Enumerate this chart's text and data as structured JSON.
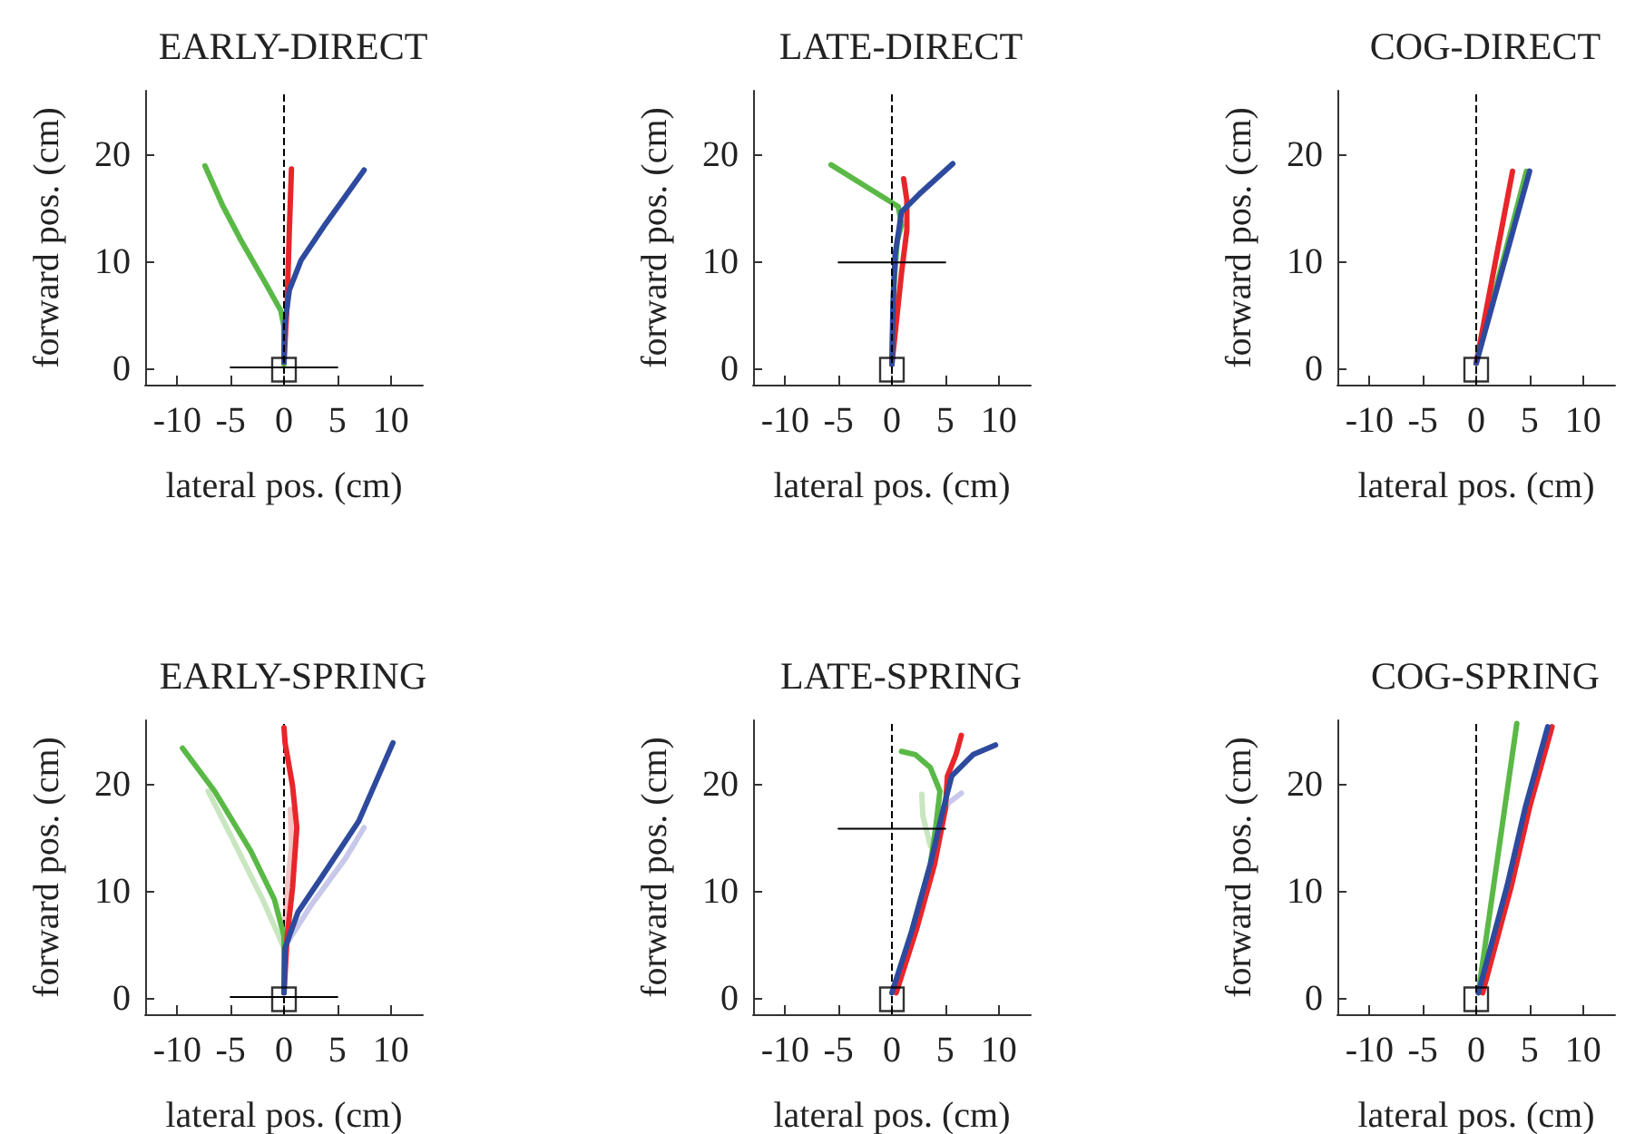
{
  "chart_data": [
    {
      "type": "line",
      "title": "EARLY-DIRECT",
      "xlabel": "lateral pos. (cm)",
      "ylabel": "forward pos. (cm)",
      "xlim": [
        -13,
        13
      ],
      "ylim": [
        -1.4,
        26
      ],
      "xticks": [
        -10,
        -5,
        0,
        5,
        10
      ],
      "yticks": [
        0,
        10,
        20
      ],
      "marker": "none",
      "grid": false,
      "ref_lines": [
        {
          "axis": "x",
          "value": 0,
          "color": "#000000",
          "line_style": "dashed"
        }
      ],
      "series": [
        {
          "color": "#5ab946",
          "x": [
            0,
            0,
            -0.3,
            -1.7,
            -4,
            -5.7,
            -7.4
          ],
          "values": [
            0.5,
            4,
            5.5,
            8,
            12,
            15.2,
            19
          ]
        },
        {
          "color": "#e8262a",
          "x": [
            0,
            0.3,
            0.5,
            0.7
          ],
          "values": [
            0.7,
            6.3,
            13,
            18.7
          ]
        },
        {
          "color": "#2e4a9e",
          "x": [
            0,
            0.05,
            0.5,
            1.6,
            3.9,
            7.5
          ],
          "values": [
            0.7,
            4,
            7.4,
            10.2,
            13.6,
            18.6
          ]
        },
        {
          "color": "#000000",
          "x": [
            -5,
            5
          ],
          "values": [
            0.2,
            0.2
          ]
        },
        {
          "type": "scatter",
          "marker": "square",
          "color": "#000000",
          "x": [
            0
          ],
          "values": [
            0
          ]
        }
      ]
    },
    {
      "type": "line",
      "title": "LATE-DIRECT",
      "xlabel": "lateral pos. (cm)",
      "ylabel": "forward pos. (cm)",
      "xlim": [
        -13,
        13
      ],
      "ylim": [
        -1.4,
        26
      ],
      "xticks": [
        -10,
        -5,
        0,
        5,
        10
      ],
      "yticks": [
        0,
        10,
        20
      ],
      "marker": "none",
      "grid": false,
      "ref_lines": [
        {
          "axis": "x",
          "value": 0,
          "color": "#000000",
          "line_style": "dashed"
        }
      ],
      "series": [
        {
          "color": "#5ab946",
          "x": [
            0,
            0.2,
            0.5,
            0.9,
            0.6,
            -2,
            -5.7
          ],
          "values": [
            0.5,
            8,
            12,
            13.5,
            15.2,
            16.8,
            19.1
          ]
        },
        {
          "color": "#e8262a",
          "x": [
            0,
            0.9,
            1.4,
            1.4,
            1.1
          ],
          "values": [
            0.5,
            9,
            13,
            15.8,
            17.8
          ]
        },
        {
          "color": "#2e4a9e",
          "x": [
            0,
            0.1,
            0.3,
            0.9,
            2.6,
            5.7
          ],
          "values": [
            0.5,
            6.1,
            10.7,
            14.7,
            16.4,
            19.2
          ]
        },
        {
          "color": "#000000",
          "x": [
            -5,
            5
          ],
          "values": [
            10,
            10
          ]
        },
        {
          "type": "scatter",
          "marker": "square",
          "color": "#000000",
          "x": [
            0
          ],
          "values": [
            0
          ]
        }
      ]
    },
    {
      "type": "line",
      "title": "COG-DIRECT",
      "xlabel": "lateral pos. (cm)",
      "ylabel": "forward pos. (cm)",
      "xlim": [
        -13,
        13
      ],
      "ylim": [
        -1.4,
        26
      ],
      "xticks": [
        -10,
        -5,
        0,
        5,
        10
      ],
      "yticks": [
        0,
        10,
        20
      ],
      "marker": "none",
      "grid": false,
      "ref_lines": [
        {
          "axis": "x",
          "value": 0,
          "color": "#000000",
          "line_style": "dashed"
        }
      ],
      "series": [
        {
          "color": "#5ab946",
          "x": [
            0,
            4.7
          ],
          "values": [
            0.6,
            18.5
          ]
        },
        {
          "color": "#e8262a",
          "x": [
            0,
            3.4
          ],
          "values": [
            0.6,
            18.5
          ]
        },
        {
          "color": "#2e4a9e",
          "x": [
            0,
            5
          ],
          "values": [
            0.6,
            18.5
          ]
        },
        {
          "type": "scatter",
          "marker": "square",
          "color": "#000000",
          "x": [
            0
          ],
          "values": [
            0
          ]
        }
      ]
    },
    {
      "type": "line",
      "title": "EARLY-SPRING",
      "xlabel": "lateral pos. (cm)",
      "ylabel": "forward pos. (cm)",
      "xlim": [
        -13,
        13
      ],
      "ylim": [
        -1.4,
        26
      ],
      "xticks": [
        -10,
        -5,
        0,
        5,
        10
      ],
      "yticks": [
        0,
        10,
        20
      ],
      "marker": "none",
      "grid": false,
      "ref_lines": [
        {
          "axis": "x",
          "value": 0,
          "color": "#000000",
          "line_style": "dashed"
        }
      ],
      "series": [
        {
          "color": "#c8e6c0",
          "x": [
            0,
            -2,
            -4.8,
            -7.1
          ],
          "values": [
            4.8,
            9.3,
            14.9,
            19.4
          ]
        },
        {
          "color": "#f4c4c4",
          "x": [
            0,
            0.2,
            0.7,
            0.6
          ],
          "values": [
            4.8,
            9.3,
            14.3,
            17.7
          ]
        },
        {
          "color": "#c8c8ea",
          "x": [
            0,
            2.5,
            5.8,
            7.5
          ],
          "values": [
            4.8,
            8.7,
            13.2,
            16
          ]
        },
        {
          "color": "#5ab946",
          "x": [
            0,
            0,
            -0.9,
            -3.1,
            -6.5,
            -9.5
          ],
          "values": [
            0.8,
            5.9,
            9.3,
            13.8,
            19.4,
            23.4
          ]
        },
        {
          "color": "#e8262a",
          "x": [
            0,
            0.3,
            0.8,
            1.2,
            0.8,
            0.1,
            0
          ],
          "values": [
            0.6,
            5.9,
            10.4,
            16,
            19.9,
            23.9,
            25.3
          ]
        },
        {
          "color": "#2e4a9e",
          "x": [
            0,
            0.1,
            1.3,
            3.6,
            7,
            10.2
          ],
          "values": [
            0.6,
            4.8,
            8.1,
            11.5,
            16.6,
            23.9
          ]
        },
        {
          "color": "#000000",
          "x": [
            -5,
            5
          ],
          "values": [
            0.2,
            0.2
          ]
        },
        {
          "type": "scatter",
          "marker": "square",
          "color": "#000000",
          "x": [
            0
          ],
          "values": [
            0
          ]
        }
      ]
    },
    {
      "type": "line",
      "title": "LATE-SPRING",
      "xlabel": "lateral pos. (cm)",
      "ylabel": "forward pos. (cm)",
      "xlim": [
        -13,
        13
      ],
      "ylim": [
        -1.4,
        26
      ],
      "xticks": [
        -10,
        -5,
        0,
        5,
        10
      ],
      "yticks": [
        0,
        10,
        20
      ],
      "marker": "none",
      "grid": false,
      "ref_lines": [
        {
          "axis": "x",
          "value": 0,
          "color": "#000000",
          "line_style": "dashed"
        }
      ],
      "series": [
        {
          "color": "#c8e6c0",
          "x": [
            3.6,
            2.9,
            2.8
          ],
          "values": [
            14.3,
            17.1,
            19.1
          ]
        },
        {
          "color": "#c8c8ea",
          "x": [
            4.2,
            5.3,
            6.5
          ],
          "values": [
            16,
            18.3,
            19.2
          ]
        },
        {
          "color": "#5ab946",
          "x": [
            1.9,
            3.6,
            4.1,
            4.5,
            3.6,
            2.2,
            0.9
          ],
          "values": [
            6.5,
            12.6,
            16,
            19.4,
            21.6,
            22.8,
            23.1
          ]
        },
        {
          "color": "#e8262a",
          "x": [
            0.4,
            2.3,
            4,
            5,
            5.2,
            6,
            6.5
          ],
          "values": [
            0.6,
            6.5,
            12.6,
            17.7,
            20.8,
            22.8,
            24.6
          ]
        },
        {
          "color": "#2e4a9e",
          "x": [
            0,
            1.9,
            3.6,
            4.8,
            5.6,
            7.6,
            9.7
          ],
          "values": [
            0.6,
            6.5,
            12.6,
            17.7,
            20.8,
            22.8,
            23.7
          ]
        },
        {
          "color": "#000000",
          "x": [
            -5,
            5
          ],
          "values": [
            15.9,
            15.9
          ]
        },
        {
          "type": "scatter",
          "marker": "square",
          "color": "#000000",
          "x": [
            0
          ],
          "values": [
            0
          ]
        }
      ]
    },
    {
      "type": "line",
      "title": "COG-SPRING",
      "xlabel": "lateral pos. (cm)",
      "ylabel": "forward pos. (cm)",
      "xlim": [
        -13,
        13
      ],
      "ylim": [
        -1.4,
        26
      ],
      "xticks": [
        -10,
        -5,
        0,
        5,
        10
      ],
      "yticks": [
        0,
        10,
        20
      ],
      "marker": "none",
      "grid": false,
      "ref_lines": [
        {
          "axis": "x",
          "value": 0,
          "color": "#000000",
          "line_style": "dashed"
        }
      ],
      "series": [
        {
          "color": "#5ab946",
          "x": [
            0.2,
            3.8
          ],
          "values": [
            0.6,
            25.7
          ]
        },
        {
          "color": "#e8262a",
          "x": [
            0.6,
            3.3,
            5,
            7.1
          ],
          "values": [
            0.6,
            10.6,
            17.9,
            25.4
          ]
        },
        {
          "color": "#2e4a9e",
          "x": [
            0.2,
            2.9,
            4.6,
            6.7
          ],
          "values": [
            0.6,
            10.6,
            17.9,
            25.4
          ]
        },
        {
          "type": "scatter",
          "marker": "square",
          "color": "#000000",
          "x": [
            0
          ],
          "values": [
            0
          ]
        }
      ]
    }
  ]
}
